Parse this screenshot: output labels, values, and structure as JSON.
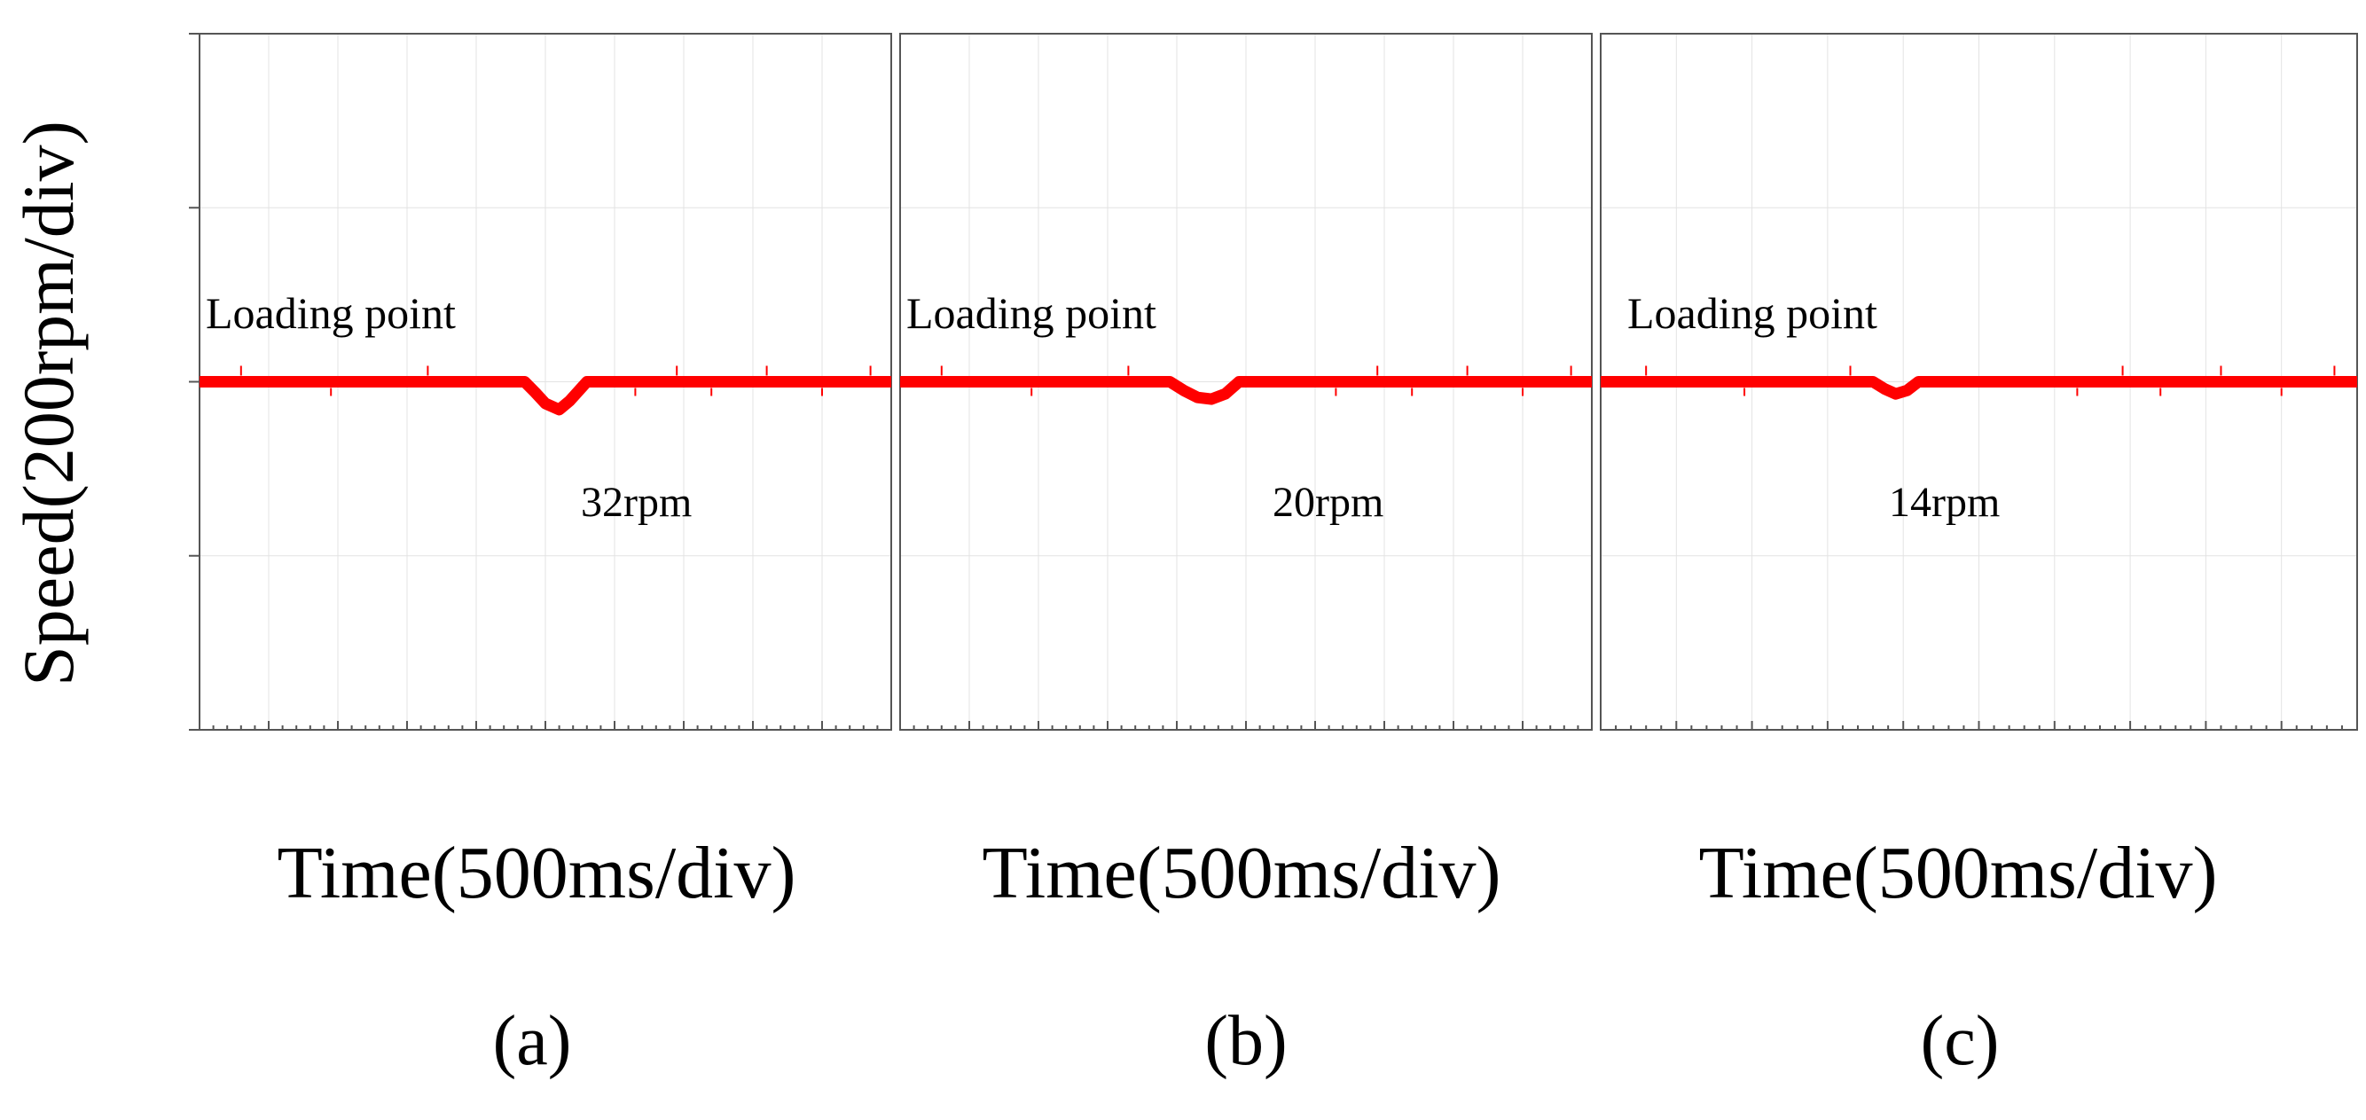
{
  "figure": {
    "ylabel": "Speed(200rpm/div)",
    "trace_color": "#ff0000"
  },
  "chart_data": [
    {
      "type": "line",
      "panel_label": "(a)",
      "xlabel": "Time(500ms/div)",
      "ylabel": "Speed(200rpm/div)",
      "annotations": {
        "event": "Loading point",
        "dip": "32rpm"
      },
      "x_units": "div",
      "y_units": "rpm",
      "xlim": [
        0,
        10
      ],
      "ylim": [
        -400,
        400
      ],
      "grid": true,
      "series": [
        {
          "x": [
            0,
            4.7,
            4.85,
            5.0,
            5.2,
            5.35,
            5.6,
            10
          ],
          "y": [
            0,
            0,
            -12,
            -25,
            -32,
            -22,
            0,
            0
          ]
        }
      ]
    },
    {
      "type": "line",
      "panel_label": "(b)",
      "xlabel": "Time(500ms/div)",
      "ylabel": "",
      "annotations": {
        "event": "Loading point",
        "dip": "20rpm"
      },
      "x_units": "div",
      "y_units": "rpm",
      "xlim": [
        0,
        10
      ],
      "ylim": [
        -400,
        400
      ],
      "grid": true,
      "series": [
        {
          "x": [
            0,
            3.9,
            4.1,
            4.3,
            4.5,
            4.7,
            4.9,
            10
          ],
          "y": [
            0,
            0,
            -10,
            -18,
            -20,
            -14,
            0,
            0
          ]
        }
      ]
    },
    {
      "type": "line",
      "panel_label": "(c)",
      "xlabel": "Time(500ms/div)",
      "ylabel": "",
      "annotations": {
        "event": "Loading point",
        "dip": "14rpm"
      },
      "x_units": "div",
      "y_units": "rpm",
      "xlim": [
        0,
        10
      ],
      "ylim": [
        -400,
        400
      ],
      "grid": true,
      "series": [
        {
          "x": [
            0,
            3.6,
            3.75,
            3.9,
            4.05,
            4.2,
            10
          ],
          "y": [
            0,
            0,
            -8,
            -14,
            -10,
            0,
            0
          ]
        }
      ]
    }
  ]
}
